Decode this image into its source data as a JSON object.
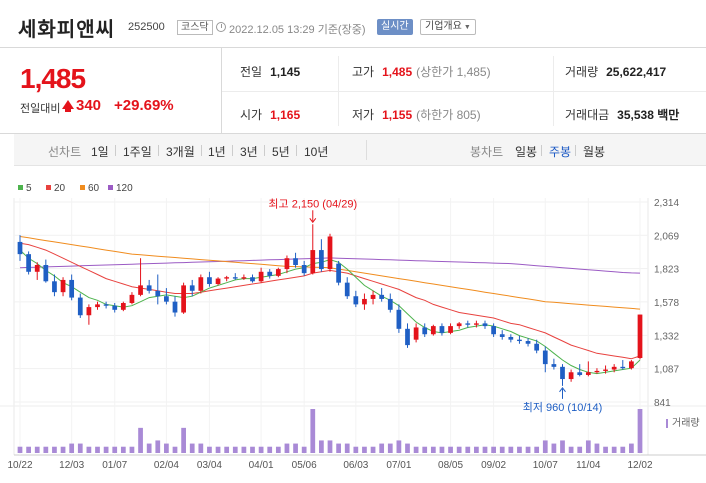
{
  "header": {
    "name": "세화피앤씨",
    "code": "252500",
    "market": "코스닥",
    "timestamp": "2022.12.05 13:29 기준(장중)",
    "realtime_label": "실시간",
    "company_label": "기업개요"
  },
  "summary": {
    "price": "1,485",
    "change_label": "전일대비",
    "change_value": "340",
    "change_pct": "+29.69%",
    "prev_close_label": "전일",
    "prev_close": "1,145",
    "high_label": "고가",
    "high": "1,485",
    "high_limit": "(상한가 1,485)",
    "volume_label": "거래량",
    "volume": "25,622,417",
    "open_label": "시가",
    "open": "1,165",
    "low_label": "저가",
    "low": "1,155",
    "low_limit": "(하한가 805)",
    "amount_label": "거래대금",
    "amount": "35,538 백만"
  },
  "toolbar": {
    "line_label": "선차트",
    "periods": [
      "1일",
      "1주일",
      "3개월",
      "1년",
      "3년",
      "5년",
      "10년"
    ],
    "candle_label": "봉차트",
    "candles": [
      "일봉",
      "주봉",
      "월봉"
    ],
    "active_candle": "주봉"
  },
  "chart_data": {
    "type": "candlestick",
    "legend": [
      "5",
      "20",
      "60",
      "120"
    ],
    "legend_colors": [
      "#4db34d",
      "#e8423f",
      "#f08c1e",
      "#9b5bc4"
    ],
    "y_ticks": [
      "2,314",
      "2,069",
      "1,823",
      "1,578",
      "1,332",
      "1,087",
      "841"
    ],
    "ylim": [
      841,
      2314
    ],
    "x_labels": [
      "10/22",
      "12/03",
      "01/07",
      "02/04",
      "03/04",
      "04/01",
      "05/06",
      "06/03",
      "07/01",
      "08/05",
      "09/02",
      "10/07",
      "11/04",
      "12/02"
    ],
    "high_annotation": "최고 2,150 (04/29)",
    "low_annotation": "최저 960 (10/14)",
    "volume_label": "거래량",
    "up_color": "#e4131b",
    "down_color": "#1f5fc4",
    "candles": [
      [
        2020,
        2070,
        1880,
        1930
      ],
      [
        1930,
        1950,
        1780,
        1800
      ],
      [
        1800,
        1870,
        1740,
        1850
      ],
      [
        1850,
        1890,
        1720,
        1730
      ],
      [
        1730,
        1780,
        1620,
        1650
      ],
      [
        1650,
        1760,
        1620,
        1740
      ],
      [
        1740,
        1780,
        1590,
        1610
      ],
      [
        1610,
        1640,
        1460,
        1480
      ],
      [
        1480,
        1560,
        1410,
        1540
      ],
      [
        1540,
        1580,
        1520,
        1560
      ],
      [
        1560,
        1580,
        1530,
        1550
      ],
      [
        1550,
        1570,
        1500,
        1520
      ],
      [
        1520,
        1580,
        1510,
        1570
      ],
      [
        1570,
        1650,
        1560,
        1630
      ],
      [
        1630,
        1900,
        1620,
        1700
      ],
      [
        1700,
        1740,
        1640,
        1660
      ],
      [
        1660,
        1780,
        1560,
        1620
      ],
      [
        1620,
        1680,
        1560,
        1580
      ],
      [
        1580,
        1620,
        1470,
        1500
      ],
      [
        1500,
        1720,
        1490,
        1700
      ],
      [
        1700,
        1740,
        1620,
        1660
      ],
      [
        1660,
        1780,
        1640,
        1760
      ],
      [
        1760,
        1800,
        1690,
        1710
      ],
      [
        1710,
        1760,
        1700,
        1750
      ],
      [
        1750,
        1770,
        1730,
        1760
      ],
      [
        1760,
        1790,
        1740,
        1750
      ],
      [
        1750,
        1780,
        1740,
        1760
      ],
      [
        1760,
        1780,
        1720,
        1730
      ],
      [
        1730,
        1830,
        1720,
        1800
      ],
      [
        1800,
        1820,
        1750,
        1770
      ],
      [
        1770,
        1830,
        1760,
        1820
      ],
      [
        1820,
        1920,
        1790,
        1900
      ],
      [
        1900,
        1940,
        1830,
        1850
      ],
      [
        1850,
        1880,
        1770,
        1790
      ],
      [
        1790,
        2150,
        1780,
        1960
      ],
      [
        1960,
        2040,
        1800,
        1820
      ],
      [
        1820,
        2080,
        1800,
        2060
      ],
      [
        1860,
        1880,
        1700,
        1720
      ],
      [
        1720,
        1760,
        1600,
        1620
      ],
      [
        1620,
        1660,
        1540,
        1560
      ],
      [
        1560,
        1640,
        1520,
        1600
      ],
      [
        1600,
        1660,
        1560,
        1630
      ],
      [
        1630,
        1680,
        1580,
        1600
      ],
      [
        1600,
        1640,
        1500,
        1520
      ],
      [
        1520,
        1560,
        1350,
        1380
      ],
      [
        1380,
        1420,
        1240,
        1260
      ],
      [
        1300,
        1420,
        1280,
        1390
      ],
      [
        1390,
        1420,
        1320,
        1340
      ],
      [
        1340,
        1410,
        1330,
        1400
      ],
      [
        1400,
        1420,
        1330,
        1350
      ],
      [
        1350,
        1420,
        1340,
        1400
      ],
      [
        1400,
        1430,
        1380,
        1420
      ],
      [
        1420,
        1440,
        1390,
        1410
      ],
      [
        1410,
        1440,
        1390,
        1420
      ],
      [
        1420,
        1440,
        1380,
        1400
      ],
      [
        1400,
        1420,
        1320,
        1340
      ],
      [
        1340,
        1370,
        1300,
        1320
      ],
      [
        1320,
        1340,
        1280,
        1300
      ],
      [
        1300,
        1330,
        1270,
        1290
      ],
      [
        1290,
        1310,
        1250,
        1270
      ],
      [
        1270,
        1300,
        1200,
        1220
      ],
      [
        1220,
        1250,
        1060,
        1120
      ],
      [
        1120,
        1160,
        1080,
        1100
      ],
      [
        1100,
        1120,
        960,
        1010
      ],
      [
        1010,
        1080,
        990,
        1060
      ],
      [
        1060,
        1120,
        1030,
        1040
      ],
      [
        1040,
        1140,
        1030,
        1060
      ],
      [
        1060,
        1090,
        1050,
        1070
      ],
      [
        1070,
        1110,
        1050,
        1080
      ],
      [
        1080,
        1120,
        1060,
        1100
      ],
      [
        1100,
        1150,
        1080,
        1090
      ],
      [
        1090,
        1150,
        1080,
        1140
      ],
      [
        1165,
        1485,
        1155,
        1485
      ]
    ],
    "volumes": [
      2,
      2,
      2,
      2,
      2,
      2,
      3,
      3,
      2,
      2,
      2,
      2,
      2,
      2,
      8,
      3,
      4,
      3,
      2,
      8,
      3,
      3,
      2,
      2,
      2,
      2,
      2,
      2,
      2,
      2,
      2,
      3,
      3,
      2,
      14,
      4,
      4,
      3,
      3,
      2,
      2,
      2,
      3,
      3,
      4,
      3,
      2,
      2,
      2,
      2,
      2,
      2,
      2,
      2,
      2,
      2,
      2,
      2,
      2,
      2,
      2,
      4,
      3,
      4,
      2,
      2,
      4,
      3,
      2,
      2,
      2,
      3,
      14
    ],
    "ma5": [
      1960,
      1900,
      1860,
      1810,
      1770,
      1720,
      1690,
      1650,
      1610,
      1590,
      1560,
      1550,
      1540,
      1550,
      1580,
      1610,
      1620,
      1630,
      1620,
      1610,
      1620,
      1650,
      1680,
      1700,
      1720,
      1740,
      1750,
      1750,
      1760,
      1770,
      1780,
      1800,
      1820,
      1830,
      1860,
      1870,
      1890,
      1870,
      1820,
      1760,
      1700,
      1660,
      1620,
      1590,
      1550,
      1490,
      1430,
      1390,
      1360,
      1350,
      1360,
      1370,
      1390,
      1400,
      1410,
      1400,
      1380,
      1360,
      1330,
      1310,
      1290,
      1250,
      1200,
      1150,
      1110,
      1080,
      1060,
      1050,
      1060,
      1070,
      1080,
      1090,
      1150
    ],
    "ma20": [
      2010,
      2000,
      1980,
      1960,
      1930,
      1900,
      1870,
      1840,
      1810,
      1780,
      1750,
      1730,
      1710,
      1690,
      1680,
      1670,
      1660,
      1650,
      1640,
      1640,
      1640,
      1650,
      1660,
      1670,
      1680,
      1690,
      1700,
      1710,
      1720,
      1730,
      1740,
      1750,
      1760,
      1770,
      1790,
      1800,
      1810,
      1800,
      1790,
      1770,
      1750,
      1730,
      1710,
      1690,
      1670,
      1640,
      1610,
      1590,
      1560,
      1540,
      1520,
      1500,
      1490,
      1480,
      1470,
      1460,
      1440,
      1420,
      1410,
      1390,
      1370,
      1350,
      1320,
      1290,
      1260,
      1240,
      1220,
      1200,
      1190,
      1180,
      1170,
      1160,
      1180
    ],
    "ma60": [
      2060,
      2050,
      2040,
      2030,
      2020,
      2010,
      2000,
      1990,
      1980,
      1970,
      1960,
      1950,
      1940,
      1930,
      1925,
      1920,
      1915,
      1910,
      1905,
      1900,
      1895,
      1890,
      1885,
      1880,
      1875,
      1870,
      1865,
      1860,
      1855,
      1850,
      1845,
      1840,
      1838,
      1836,
      1834,
      1832,
      1830,
      1820,
      1810,
      1800,
      1790,
      1780,
      1770,
      1760,
      1750,
      1740,
      1730,
      1720,
      1710,
      1700,
      1690,
      1680,
      1670,
      1660,
      1650,
      1640,
      1630,
      1620,
      1610,
      1600,
      1590,
      1580,
      1575,
      1570,
      1565,
      1560,
      1555,
      1550,
      1545,
      1540,
      1535,
      1530,
      1525
    ],
    "ma120": [
      1830,
      1832,
      1834,
      1836,
      1838,
      1840,
      1842,
      1844,
      1846,
      1848,
      1850,
      1852,
      1854,
      1856,
      1858,
      1860,
      1862,
      1864,
      1866,
      1868,
      1870,
      1872,
      1874,
      1876,
      1878,
      1880,
      1882,
      1884,
      1886,
      1888,
      1890,
      1892,
      1894,
      1896,
      1898,
      1900,
      1902,
      1900,
      1898,
      1896,
      1894,
      1892,
      1890,
      1888,
      1886,
      1884,
      1882,
      1880,
      1878,
      1876,
      1874,
      1872,
      1870,
      1868,
      1866,
      1864,
      1862,
      1860,
      1855,
      1850,
      1845,
      1840,
      1835,
      1830,
      1825,
      1820,
      1815,
      1810,
      1805,
      1800,
      1795,
      1792,
      1790
    ]
  }
}
